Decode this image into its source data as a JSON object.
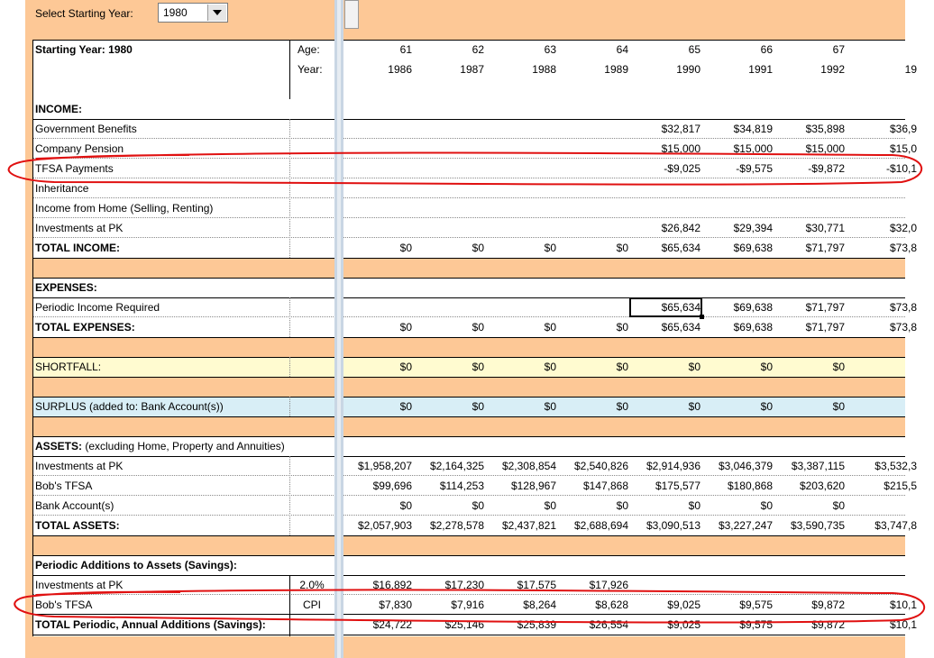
{
  "selector": {
    "label": "Select Starting Year:",
    "value": "1980"
  },
  "header": {
    "title": "Starting Year: 1980",
    "age_label": "Age:",
    "year_label": "Year:",
    "ages": [
      "61",
      "62",
      "63",
      "64",
      "65",
      "66",
      "67",
      ""
    ],
    "years": [
      "1986",
      "1987",
      "1988",
      "1989",
      "1990",
      "1991",
      "1992",
      "19"
    ]
  },
  "income": {
    "heading": "INCOME:",
    "rows": [
      {
        "label": "Government Benefits",
        "values": [
          "",
          "",
          "",
          "",
          "$32,817",
          "$34,819",
          "$35,898",
          "$36,9"
        ]
      },
      {
        "label": "Company Pension",
        "values": [
          "",
          "",
          "",
          "",
          "$15,000",
          "$15,000",
          "$15,000",
          "$15,0"
        ]
      },
      {
        "label": "TFSA Payments",
        "values": [
          "",
          "",
          "",
          "",
          "-$9,025",
          "-$9,575",
          "-$9,872",
          "-$10,1"
        ]
      },
      {
        "label": "Inheritance",
        "values": [
          "",
          "",
          "",
          "",
          "",
          "",
          "",
          ""
        ]
      },
      {
        "label": "Income from Home (Selling, Renting)",
        "values": [
          "",
          "",
          "",
          "",
          "",
          "",
          "",
          ""
        ]
      },
      {
        "label": "Investments at PK",
        "values": [
          "",
          "",
          "",
          "",
          "$26,842",
          "$29,394",
          "$30,771",
          "$32,0"
        ]
      }
    ],
    "total": {
      "label": "TOTAL INCOME:",
      "values": [
        "$0",
        "$0",
        "$0",
        "$0",
        "$65,634",
        "$69,638",
        "$71,797",
        "$73,8"
      ]
    }
  },
  "expenses": {
    "heading": "EXPENSES:",
    "rows": [
      {
        "label": "Periodic Income Required",
        "values": [
          "",
          "",
          "",
          "",
          "$65,634",
          "$69,638",
          "$71,797",
          "$73,8"
        ]
      }
    ],
    "total": {
      "label": "TOTAL EXPENSES:",
      "values": [
        "$0",
        "$0",
        "$0",
        "$0",
        "$65,634",
        "$69,638",
        "$71,797",
        "$73,8"
      ]
    }
  },
  "shortfall": {
    "label": "SHORTFALL:",
    "values": [
      "$0",
      "$0",
      "$0",
      "$0",
      "$0",
      "$0",
      "$0",
      ""
    ]
  },
  "surplus": {
    "label": "SURPLUS (added to: Bank Account(s))",
    "values": [
      "$0",
      "$0",
      "$0",
      "$0",
      "$0",
      "$0",
      "$0",
      ""
    ]
  },
  "assets": {
    "heading_bold": "ASSETS:",
    "heading_rest": " (excluding Home, Property and Annuities)",
    "rows": [
      {
        "label": "Investments at PK",
        "values": [
          "$1,958,207",
          "$2,164,325",
          "$2,308,854",
          "$2,540,826",
          "$2,914,936",
          "$3,046,379",
          "$3,387,115",
          "$3,532,3"
        ]
      },
      {
        "label": "Bob's TFSA",
        "values": [
          "$99,696",
          "$114,253",
          "$128,967",
          "$147,868",
          "$175,577",
          "$180,868",
          "$203,620",
          "$215,5"
        ]
      },
      {
        "label": "Bank Account(s)",
        "values": [
          "$0",
          "$0",
          "$0",
          "$0",
          "$0",
          "$0",
          "$0",
          ""
        ]
      }
    ],
    "total": {
      "label": "TOTAL ASSETS:",
      "values": [
        "$2,057,903",
        "$2,278,578",
        "$2,437,821",
        "$2,688,694",
        "$3,090,513",
        "$3,227,247",
        "$3,590,735",
        "$3,747,8"
      ]
    }
  },
  "savings": {
    "heading": "Periodic Additions to Assets (Savings):",
    "rows": [
      {
        "label": "Investments at PK",
        "rate": "2.0%",
        "values": [
          "$16,892",
          "$17,230",
          "$17,575",
          "$17,926",
          "",
          "",
          "",
          ""
        ]
      },
      {
        "label": "Bob's TFSA",
        "rate": "CPI",
        "values": [
          "$7,830",
          "$7,916",
          "$8,264",
          "$8,628",
          "$9,025",
          "$9,575",
          "$9,872",
          "$10,1"
        ]
      }
    ],
    "total": {
      "label": "TOTAL Periodic, Annual Additions (Savings):",
      "values": [
        "$24,722",
        "$25,146",
        "$25,839",
        "$26,554",
        "$9,025",
        "$9,575",
        "$9,872",
        "$10,1"
      ]
    }
  },
  "colors": {
    "band": "#fdc896",
    "shortfall": "#fffbd0",
    "surplus": "#d8eef6",
    "annotation": "#e01010"
  }
}
